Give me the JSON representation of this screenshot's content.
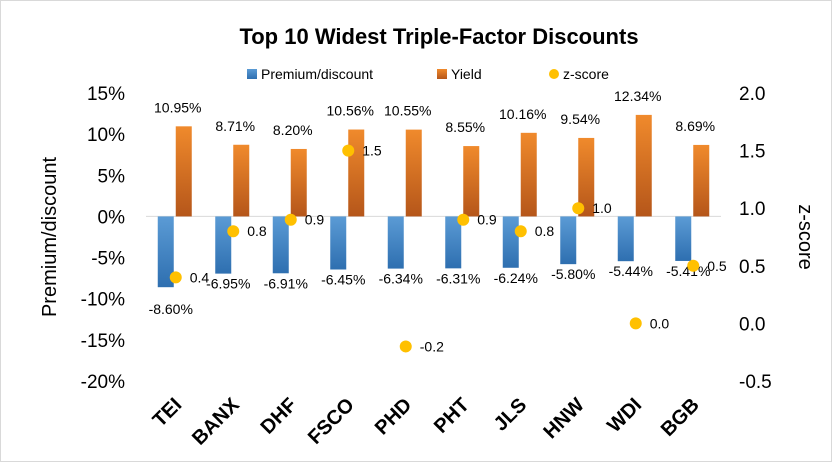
{
  "chart_data": {
    "type": "bar",
    "title": "Top 10 Widest Triple-Factor Discounts",
    "categories": [
      "TEI",
      "BANX",
      "DHF",
      "FSCO",
      "PHD",
      "PHT",
      "JLS",
      "HNW",
      "WDI",
      "BGB"
    ],
    "series": [
      {
        "name": "Premium/discount",
        "axis": "left",
        "chart_type": "bar",
        "values": [
          -8.6,
          -6.95,
          -6.91,
          -6.45,
          -6.34,
          -6.31,
          -6.24,
          -5.8,
          -5.44,
          -5.41
        ],
        "labels": [
          "-8.60%",
          "-6.95%",
          "-6.91%",
          "-6.45%",
          "-6.34%",
          "-6.31%",
          "-6.24%",
          "-5.80%",
          "-5.44%",
          "-5.41%"
        ]
      },
      {
        "name": "Yield",
        "axis": "left",
        "chart_type": "bar",
        "values": [
          10.95,
          8.71,
          8.2,
          10.56,
          10.55,
          8.55,
          10.16,
          9.54,
          12.34,
          8.69
        ],
        "labels": [
          "10.95%",
          "8.71%",
          "8.20%",
          "10.56%",
          "10.55%",
          "8.55%",
          "10.16%",
          "9.54%",
          "12.34%",
          "8.69%"
        ]
      },
      {
        "name": "z-score",
        "axis": "right",
        "chart_type": "scatter",
        "values": [
          0.4,
          0.8,
          0.9,
          1.5,
          -0.2,
          0.9,
          0.8,
          1.0,
          0.0,
          0.5
        ],
        "labels": [
          "0.4",
          "0.8",
          "0.9",
          "1.5",
          "-0.2",
          "0.9",
          "0.8",
          "1.0",
          "0.0",
          "0.5"
        ]
      }
    ],
    "ylabel": "Premium/discount",
    "y2label": "z-score",
    "ylim": [
      -20,
      15
    ],
    "y2lim": [
      -0.5,
      2.0
    ],
    "yticks": [
      "15%",
      "10%",
      "5%",
      "0%",
      "-5%",
      "-10%",
      "-15%",
      "-20%"
    ],
    "y2ticks": [
      "2.0",
      "1.5",
      "1.0",
      "0.5",
      "0.0",
      "-0.5"
    ],
    "grid": false,
    "legend_position": "top",
    "colors": {
      "premium_top": "#5b9bd5",
      "premium_bottom": "#2e6fb0",
      "yield_top": "#f08a2c",
      "yield_bottom": "#b5561a",
      "zscore": "#ffc000"
    }
  }
}
